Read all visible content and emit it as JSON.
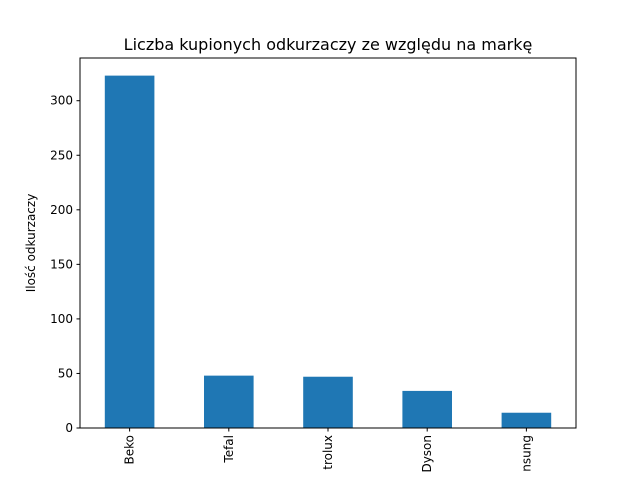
{
  "chart_data": {
    "type": "bar",
    "title": "Liczba kupionych odkurzaczy ze względu na markę",
    "xlabel": "",
    "ylabel": "Ilość odkurzaczy",
    "categories": [
      "Beko",
      "Tefal",
      "trolux",
      "Dyson",
      "nsung"
    ],
    "values": [
      323,
      48,
      47,
      34,
      14
    ],
    "ylim": [
      0,
      339.15
    ],
    "yticks": [
      0,
      50,
      100,
      150,
      200,
      250,
      300
    ],
    "bar_color": "#1f77b4",
    "grid": false,
    "legend": "none"
  }
}
